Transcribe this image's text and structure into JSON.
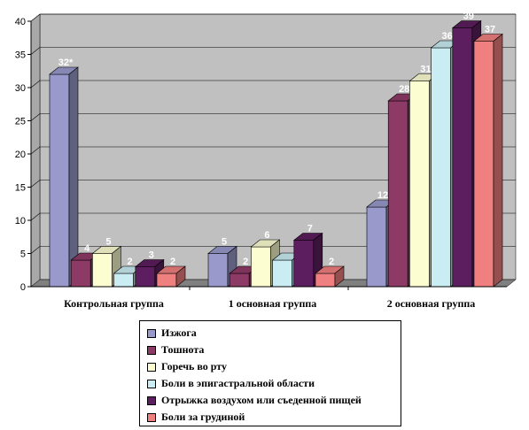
{
  "chart_data": {
    "type": "bar",
    "categories": [
      "Контрольная группа",
      "1 основная группа",
      "2 основная группа"
    ],
    "ylim": [
      0,
      40
    ],
    "yticks": [
      0,
      5,
      10,
      15,
      20,
      25,
      30,
      35,
      40
    ],
    "grid": true,
    "legend_position": "bottom",
    "series": [
      {
        "name": "Изжога",
        "color": "#9999cc",
        "values": [
          32,
          5,
          12
        ],
        "labels": [
          "32*",
          "5",
          "12"
        ]
      },
      {
        "name": "Тошнота",
        "color": "#8e3a66",
        "values": [
          4,
          2,
          28
        ],
        "labels": [
          "4",
          "2",
          "28"
        ]
      },
      {
        "name": "Горечь во рту",
        "color": "#fdfdd2",
        "values": [
          5,
          6,
          31
        ],
        "labels": [
          "5",
          "6",
          "31"
        ]
      },
      {
        "name": "Боли в эпигастральной области",
        "color": "#c9edf3",
        "values": [
          2,
          4,
          36
        ],
        "labels": [
          "2",
          "",
          "36"
        ]
      },
      {
        "name": "Отрыжка воздухом или съеденной пищей",
        "color": "#5c1e5e",
        "values": [
          3,
          7,
          39
        ],
        "labels": [
          "3",
          "7",
          "39"
        ]
      },
      {
        "name": "Боли за грудиной",
        "color": "#f08080",
        "values": [
          2,
          2,
          37
        ],
        "labels": [
          "2",
          "2",
          "37"
        ]
      }
    ]
  }
}
